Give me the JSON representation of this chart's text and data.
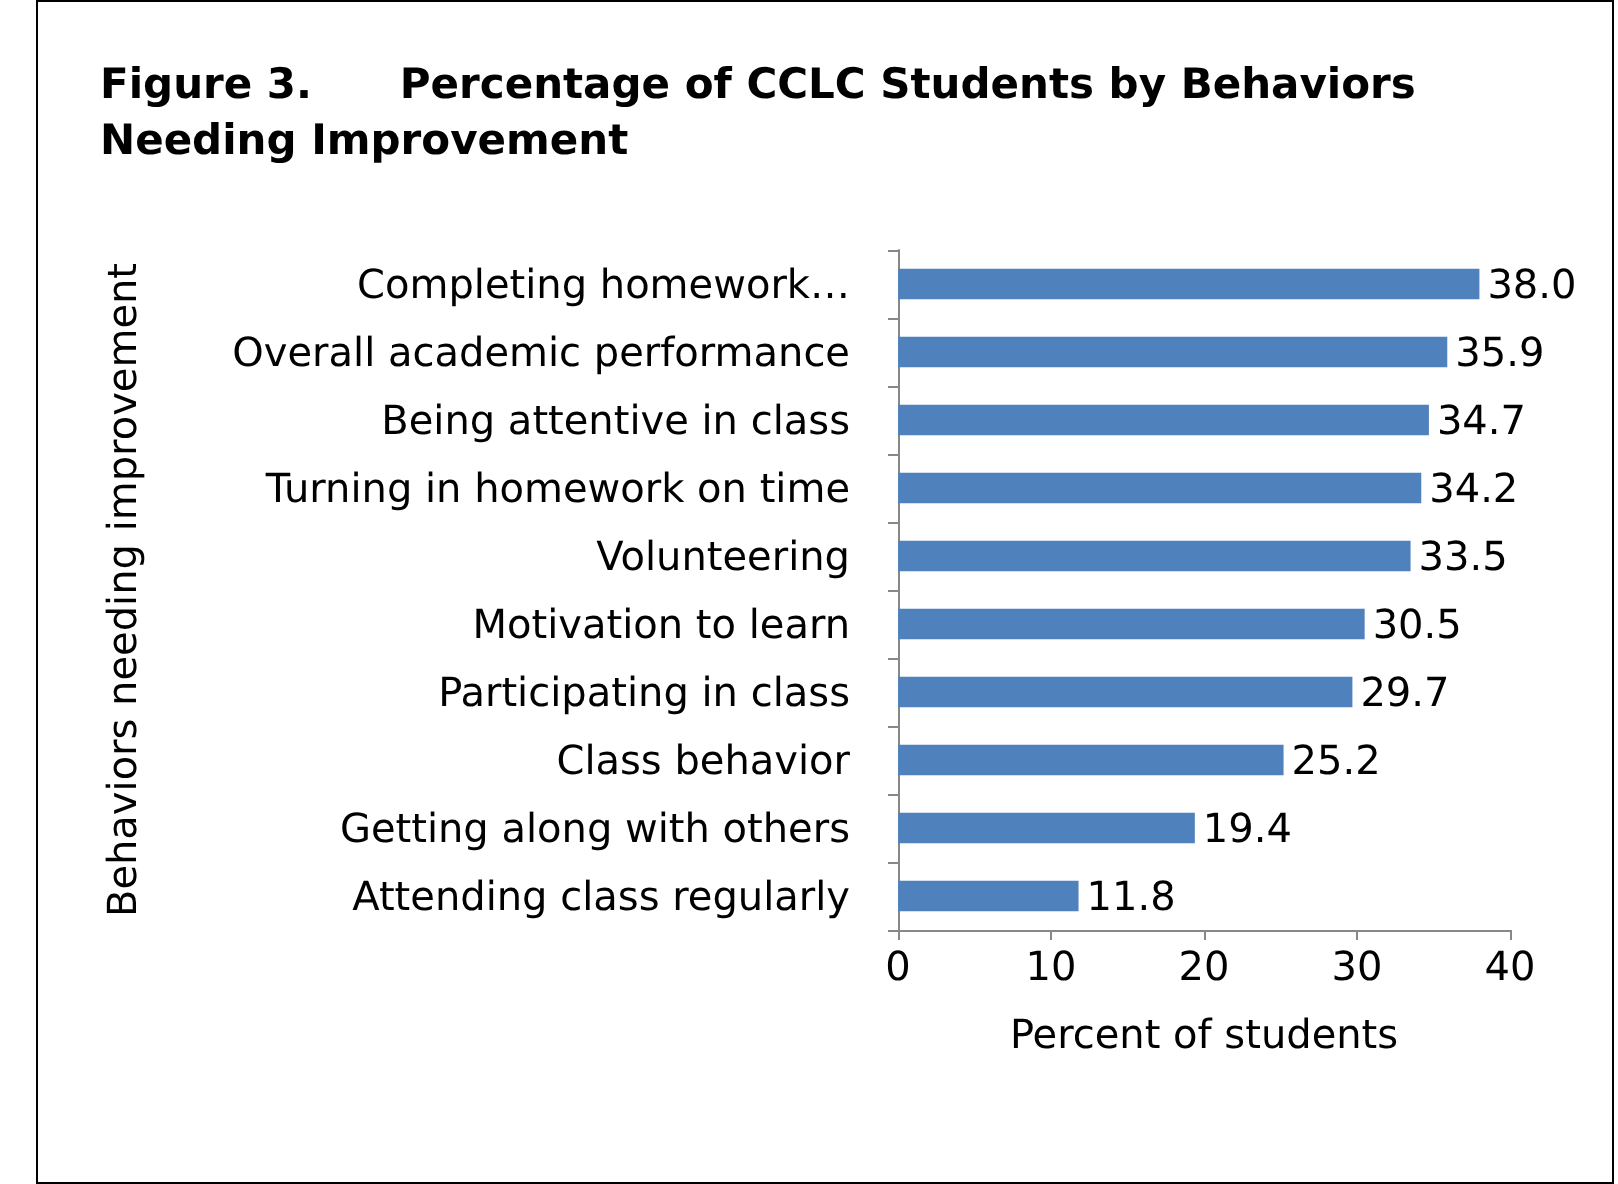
{
  "chart_data": {
    "type": "bar",
    "orientation": "horizontal",
    "title": "Figure 3.      Percentage of CCLC Students by Behaviors Needing Improvement",
    "xlabel": "Percent of students",
    "ylabel": "Behaviors needing improvement",
    "categories": [
      "Completing homework…",
      "Overall academic performance",
      "Being attentive in class",
      "Turning in homework on time",
      "Volunteering",
      "Motivation to learn",
      "Participating in class",
      "Class behavior",
      "Getting along with others",
      "Attending class regularly"
    ],
    "values": [
      38.0,
      35.9,
      34.7,
      34.2,
      33.5,
      30.5,
      29.7,
      25.2,
      19.4,
      11.8
    ],
    "value_labels": [
      "38.0",
      "35.9",
      "34.7",
      "34.2",
      "33.5",
      "30.5",
      "29.7",
      "25.2",
      "19.4",
      "11.8"
    ],
    "color": "#4f81bd",
    "xlim": [
      0,
      40
    ],
    "xticks": [
      0,
      10,
      20,
      30,
      40
    ],
    "grid": false
  }
}
